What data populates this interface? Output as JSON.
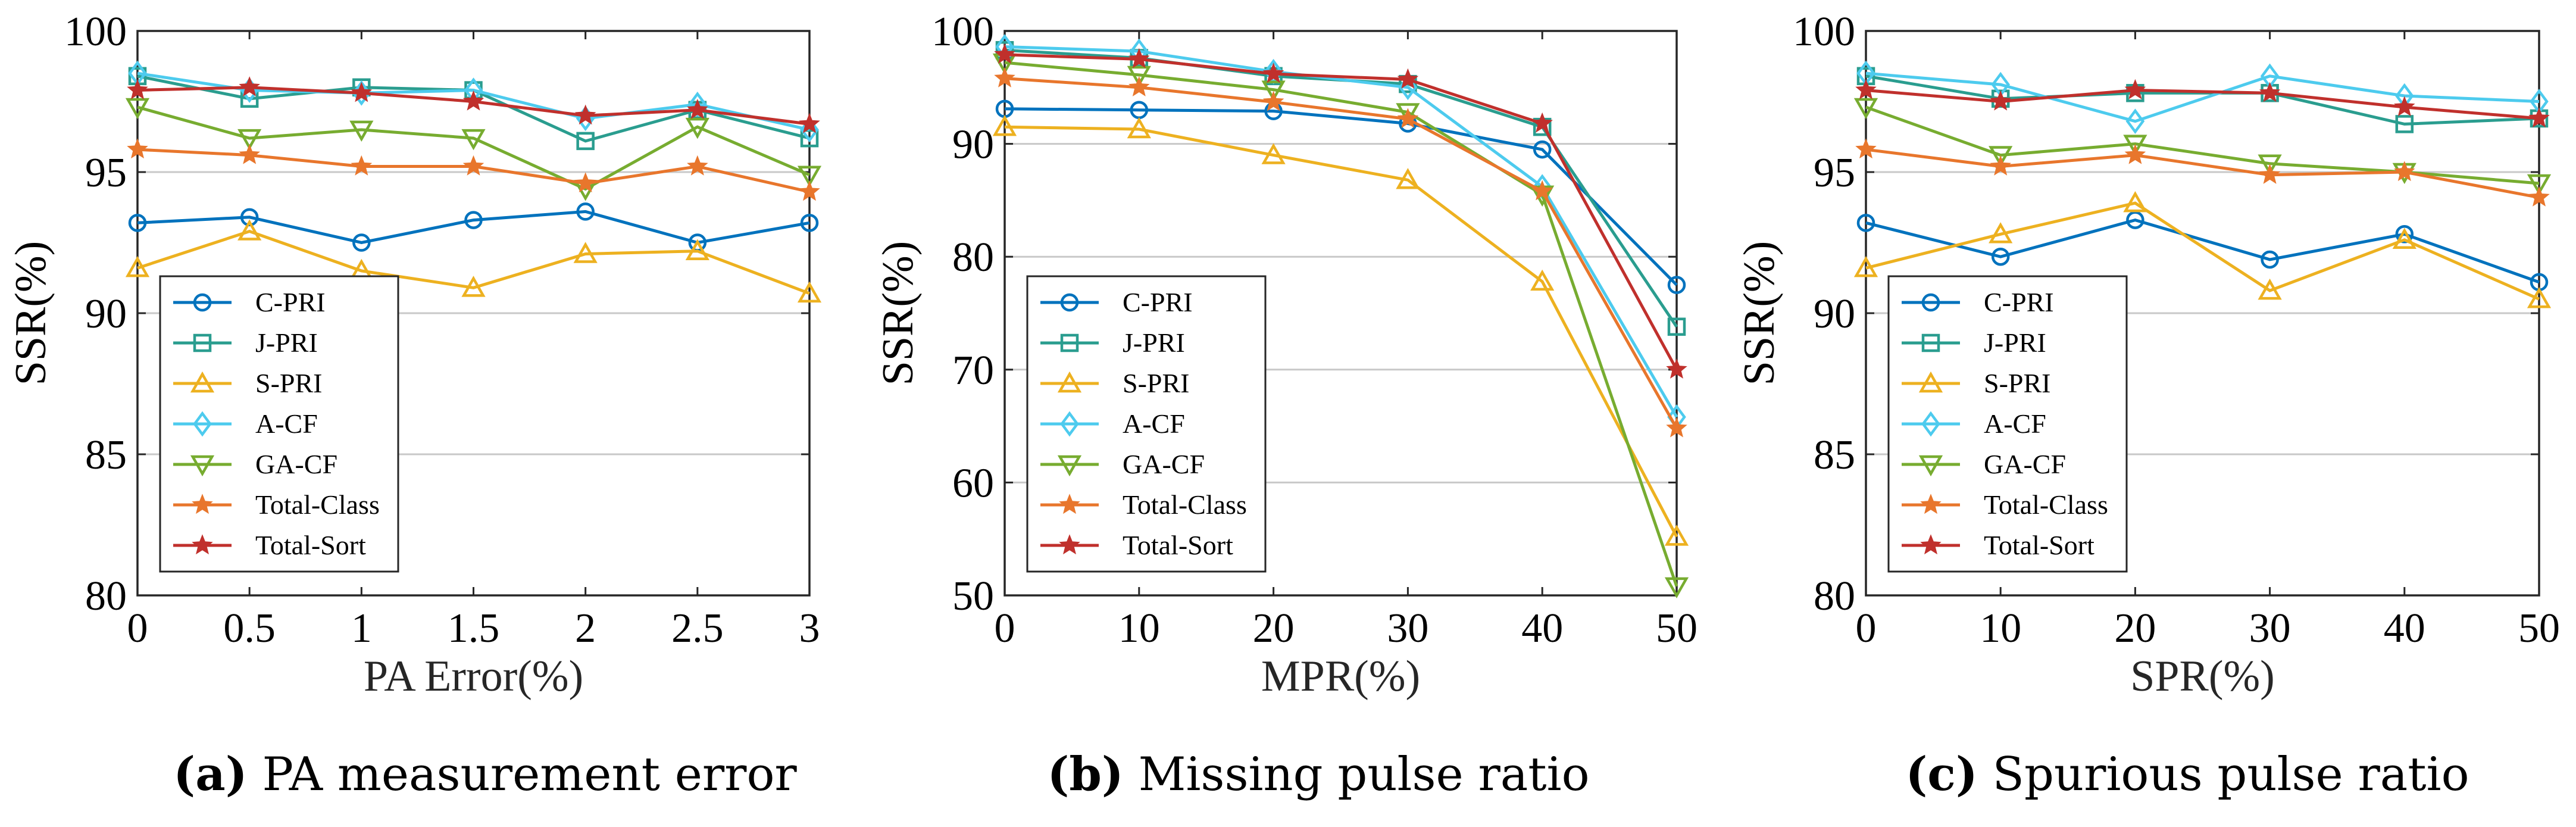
{
  "colors": {
    "c_pri": "#0072BD",
    "j_pri": "#2A9D8F",
    "s_pri": "#EDB120",
    "a_cf": "#4DCBEE",
    "ga_cf": "#77AC30",
    "total_class": "#E8762C",
    "total_sort": "#C0302C"
  },
  "chart_data": [
    {
      "type": "line",
      "title": "",
      "xlabel": "PA Error(%)",
      "ylabel": "SSR(%)",
      "x": [
        0,
        0.5,
        1,
        1.5,
        2,
        2.5,
        3
      ],
      "xticks": [
        "0",
        "0.5",
        "1",
        "1.5",
        "2",
        "2.5",
        "3"
      ],
      "xlim": [
        0,
        3
      ],
      "ylim": [
        80,
        100
      ],
      "yticks": [
        "80",
        "85",
        "90",
        "95",
        "100"
      ],
      "legend": "bottom-left",
      "series": [
        {
          "name": "C-PRI",
          "marker": "circle",
          "color": "c_pri",
          "values": [
            93.2,
            93.4,
            92.5,
            93.3,
            93.6,
            92.5,
            93.2
          ]
        },
        {
          "name": "J-PRI",
          "marker": "square",
          "color": "j_pri",
          "values": [
            98.4,
            97.6,
            98.0,
            97.9,
            96.1,
            97.2,
            96.2
          ]
        },
        {
          "name": "S-PRI",
          "marker": "triangle-up",
          "color": "s_pri",
          "values": [
            91.6,
            92.9,
            91.5,
            90.9,
            92.1,
            92.2,
            90.7
          ]
        },
        {
          "name": "A-CF",
          "marker": "diamond",
          "color": "a_cf",
          "values": [
            98.5,
            97.9,
            97.8,
            97.9,
            96.9,
            97.4,
            96.5
          ]
        },
        {
          "name": "GA-CF",
          "marker": "triangle-down",
          "color": "ga_cf",
          "values": [
            97.3,
            96.2,
            96.5,
            96.2,
            94.4,
            96.6,
            94.9
          ]
        },
        {
          "name": "Total-Class",
          "marker": "star",
          "color": "total_class",
          "values": [
            95.8,
            95.6,
            95.2,
            95.2,
            94.6,
            95.2,
            94.3
          ]
        },
        {
          "name": "Total-Sort",
          "marker": "star",
          "color": "total_sort",
          "values": [
            97.9,
            98.0,
            97.8,
            97.5,
            97.0,
            97.2,
            96.7
          ]
        }
      ],
      "caption_label": "(a)",
      "caption_text": "PA measurement error"
    },
    {
      "type": "line",
      "title": "",
      "xlabel": "MPR(%)",
      "ylabel": "SSR(%)",
      "x": [
        0,
        10,
        20,
        30,
        40,
        50
      ],
      "xticks": [
        "0",
        "10",
        "20",
        "30",
        "40",
        "50"
      ],
      "xlim": [
        0,
        50
      ],
      "ylim": [
        50,
        100
      ],
      "yticks": [
        "50",
        "60",
        "70",
        "80",
        "90",
        "100"
      ],
      "legend": "bottom-left",
      "series": [
        {
          "name": "C-PRI",
          "marker": "circle",
          "color": "c_pri",
          "values": [
            93.1,
            93.0,
            92.9,
            91.8,
            89.5,
            77.5
          ]
        },
        {
          "name": "J-PRI",
          "marker": "square",
          "color": "j_pri",
          "values": [
            98.3,
            97.6,
            96.0,
            95.3,
            91.5,
            73.8
          ]
        },
        {
          "name": "S-PRI",
          "marker": "triangle-up",
          "color": "s_pri",
          "values": [
            91.5,
            91.3,
            89.0,
            86.8,
            77.8,
            55.2
          ]
        },
        {
          "name": "A-CF",
          "marker": "diamond",
          "color": "a_cf",
          "values": [
            98.6,
            98.2,
            96.4,
            95.0,
            86.2,
            65.8
          ]
        },
        {
          "name": "GA-CF",
          "marker": "triangle-down",
          "color": "ga_cf",
          "values": [
            97.2,
            96.1,
            94.8,
            92.8,
            85.5,
            50.8
          ]
        },
        {
          "name": "Total-Class",
          "marker": "star",
          "color": "total_class",
          "values": [
            95.8,
            95.0,
            93.7,
            92.2,
            85.8,
            64.8
          ]
        },
        {
          "name": "Total-Sort",
          "marker": "star",
          "color": "total_sort",
          "values": [
            97.9,
            97.5,
            96.2,
            95.7,
            91.8,
            70.0
          ]
        }
      ],
      "caption_label": "(b)",
      "caption_text": "Missing pulse ratio"
    },
    {
      "type": "line",
      "title": "",
      "xlabel": "SPR(%)",
      "ylabel": "SSR(%)",
      "x": [
        0,
        10,
        20,
        30,
        40,
        50
      ],
      "xticks": [
        "0",
        "10",
        "20",
        "30",
        "40",
        "50"
      ],
      "xlim": [
        0,
        50
      ],
      "ylim": [
        80,
        100
      ],
      "yticks": [
        "80",
        "85",
        "90",
        "95",
        "100"
      ],
      "legend": "bottom-left",
      "series": [
        {
          "name": "C-PRI",
          "marker": "circle",
          "color": "c_pri",
          "values": [
            93.2,
            92.0,
            93.3,
            91.9,
            92.8,
            91.1
          ]
        },
        {
          "name": "J-PRI",
          "marker": "square",
          "color": "j_pri",
          "values": [
            98.4,
            97.6,
            97.8,
            97.8,
            96.7,
            96.9
          ]
        },
        {
          "name": "S-PRI",
          "marker": "triangle-up",
          "color": "s_pri",
          "values": [
            91.6,
            92.8,
            93.9,
            90.8,
            92.6,
            90.5
          ]
        },
        {
          "name": "A-CF",
          "marker": "diamond",
          "color": "a_cf",
          "values": [
            98.5,
            98.1,
            96.8,
            98.4,
            97.7,
            97.5
          ]
        },
        {
          "name": "GA-CF",
          "marker": "triangle-down",
          "color": "ga_cf",
          "values": [
            97.3,
            95.6,
            96.0,
            95.3,
            95.0,
            94.6
          ]
        },
        {
          "name": "Total-Class",
          "marker": "star",
          "color": "total_class",
          "values": [
            95.8,
            95.2,
            95.6,
            94.9,
            95.0,
            94.1
          ]
        },
        {
          "name": "Total-Sort",
          "marker": "star",
          "color": "total_sort",
          "values": [
            97.9,
            97.5,
            97.9,
            97.8,
            97.3,
            96.9
          ]
        }
      ],
      "caption_label": "(c)",
      "caption_text": "Spurious pulse ratio"
    }
  ]
}
